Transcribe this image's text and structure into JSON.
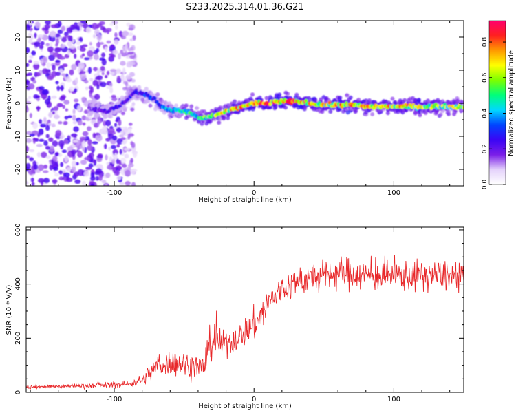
{
  "title": "S233.2025.314.01.36.G21",
  "colors": {
    "snr_line": "#e8282a",
    "axis": "#000000",
    "background": "#ffffff"
  },
  "chart_data": [
    {
      "type": "heatmap",
      "name": "spectrogram",
      "title": "S233.2025.314.01.36.G21",
      "xlabel": "Height of straight line (km)",
      "ylabel": "Frequency (Hz)",
      "xlim": [
        -163,
        150
      ],
      "ylim": [
        -25,
        25
      ],
      "x_ticks": [
        -100,
        0,
        100
      ],
      "y_ticks": [
        -20,
        -10,
        0,
        10,
        20
      ],
      "colorbar": {
        "label": "Normalized spectral amplitude",
        "range": [
          0,
          0.92
        ],
        "ticks": [
          "0.0",
          "0.2",
          "0.4",
          "0.6",
          "0.8"
        ],
        "tick_values": [
          0.0,
          0.2,
          0.4,
          0.6,
          0.8
        ],
        "colormap": [
          "#ffffff",
          "#e4d2fb",
          "#7a1ee8",
          "#3a05f5",
          "#0044ff",
          "#00d8ff",
          "#00ff7a",
          "#7cff00",
          "#ffff00",
          "#ff9900",
          "#ff2020",
          "#ff006e"
        ]
      },
      "ridge": {
        "x": [
          -118,
          -105,
          -95,
          -85,
          -78,
          -72,
          -66,
          -60,
          -55,
          -50,
          -45,
          -40,
          -35,
          -28,
          -20,
          -12,
          -5,
          0,
          10,
          20,
          30,
          40,
          50,
          60,
          70,
          80,
          90,
          100,
          110,
          120,
          130,
          140,
          150
        ],
        "frequency": [
          -1.5,
          -2.5,
          -0.5,
          3.5,
          2.5,
          1.5,
          -1,
          -2,
          -2,
          -2.5,
          -3,
          -4.5,
          -4.5,
          -3.5,
          -2.5,
          -1.5,
          -0.5,
          0,
          0,
          0.5,
          0.5,
          0,
          -0.5,
          -0.5,
          -0.5,
          -1,
          -1,
          -1,
          -1,
          -1,
          -1,
          -1,
          -1
        ],
        "amplitude": [
          0.2,
          0.3,
          0.25,
          0.3,
          0.35,
          0.35,
          0.4,
          0.45,
          0.5,
          0.55,
          0.55,
          0.6,
          0.65,
          0.7,
          0.75,
          0.8,
          0.85,
          0.85,
          0.9,
          0.9,
          0.9,
          0.85,
          0.8,
          0.8,
          0.8,
          0.8,
          0.75,
          0.8,
          0.8,
          0.75,
          0.7,
          0.7,
          0.7
        ]
      },
      "noise_region": {
        "x_from": -163,
        "x_to": -85,
        "amplitude": [
          0.05,
          0.25
        ]
      }
    },
    {
      "type": "line",
      "name": "snr",
      "xlabel": "Height of straight line (km)",
      "ylabel": "SNR (10 * V/V)",
      "xlim": [
        -163,
        150
      ],
      "ylim": [
        0,
        610
      ],
      "x_ticks": [
        -100,
        0,
        100
      ],
      "y_ticks": [
        0,
        200,
        400,
        600
      ],
      "series": [
        {
          "name": "SNR",
          "x": [
            -163,
            -140,
            -120,
            -100,
            -90,
            -80,
            -75,
            -70,
            -60,
            -50,
            -45,
            -40,
            -35,
            -32,
            -28,
            -22,
            -15,
            -10,
            -5,
            0,
            5,
            8,
            12,
            18,
            25,
            30,
            40,
            50,
            60,
            70,
            80,
            90,
            100,
            110,
            120,
            130,
            140,
            150
          ],
          "mean": [
            20,
            22,
            25,
            28,
            30,
            45,
            70,
            95,
            110,
            105,
            100,
            95,
            95,
            180,
            190,
            180,
            190,
            210,
            230,
            250,
            280,
            310,
            340,
            370,
            390,
            410,
            420,
            430,
            440,
            440,
            430,
            430,
            430,
            430,
            430,
            430,
            430,
            420
          ],
          "spread": [
            8,
            10,
            12,
            14,
            16,
            25,
            40,
            50,
            60,
            60,
            60,
            55,
            55,
            70,
            90,
            60,
            60,
            60,
            70,
            80,
            80,
            80,
            80,
            70,
            70,
            70,
            70,
            70,
            75,
            75,
            70,
            70,
            70,
            70,
            70,
            70,
            70,
            60
          ]
        }
      ]
    }
  ]
}
